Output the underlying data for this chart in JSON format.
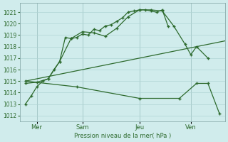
{
  "bg_color": "#d0ecec",
  "grid_color": "#b0d4d4",
  "line_color": "#2d6a2d",
  "xlabel": "Pression niveau de la mer( hPa )",
  "ylim": [
    1011.5,
    1021.8
  ],
  "yticks": [
    1012,
    1013,
    1014,
    1015,
    1016,
    1017,
    1018,
    1019,
    1020,
    1021
  ],
  "xlim": [
    0,
    18
  ],
  "xtick_positions": [
    1.5,
    5.5,
    10.5,
    15.0
  ],
  "xtick_labels": [
    "Mer",
    "Sam",
    "Jeu",
    "Ven"
  ],
  "vline_positions": [
    1.5,
    5.5,
    10.5,
    15.0
  ],
  "line1_x": [
    0.5,
    1.0,
    1.5,
    2.0,
    2.5,
    3.0,
    3.5,
    4.0,
    4.5,
    5.0,
    5.5,
    6.0,
    6.5,
    7.0,
    7.5,
    8.0,
    8.5,
    9.0,
    9.5,
    10.0,
    10.5,
    11.0,
    11.5,
    12.0,
    12.5,
    13.0
  ],
  "line1_y": [
    1013.0,
    1013.7,
    1014.5,
    1015.0,
    1015.2,
    1016.0,
    1016.7,
    1018.8,
    1018.7,
    1018.8,
    1019.1,
    1019.0,
    1019.5,
    1019.4,
    1019.8,
    1019.9,
    1020.2,
    1020.5,
    1021.0,
    1021.1,
    1021.2,
    1021.2,
    1021.1,
    1021.0,
    1021.2,
    1019.8
  ],
  "line1_style": "-",
  "line1_markers": true,
  "line2_x": [
    0.5,
    1.5,
    2.5,
    3.5,
    4.5,
    5.5,
    6.5,
    7.5,
    8.5,
    9.5,
    10.5,
    11.5,
    12.5,
    13.5,
    14.5,
    15.0,
    15.5,
    16.5
  ],
  "line2_y": [
    1014.8,
    1014.9,
    1015.2,
    1016.7,
    1018.7,
    1019.3,
    1019.2,
    1018.9,
    1019.6,
    1020.6,
    1021.2,
    1021.2,
    1021.1,
    1019.8,
    1018.2,
    1017.3,
    1018.0,
    1017.0
  ],
  "line2_style": "-",
  "line2_markers": true,
  "line3_x": [
    0.5,
    18.0
  ],
  "line3_y": [
    1015.0,
    1018.5
  ],
  "line3_style": "-",
  "line3_markers": false,
  "line4_x": [
    0.5,
    5.0,
    10.5,
    14.0,
    15.5,
    16.5,
    17.5
  ],
  "line4_y": [
    1015.0,
    1014.5,
    1013.5,
    1013.5,
    1014.8,
    1014.8,
    1012.2
  ],
  "line4_style": "-",
  "line4_markers": true
}
